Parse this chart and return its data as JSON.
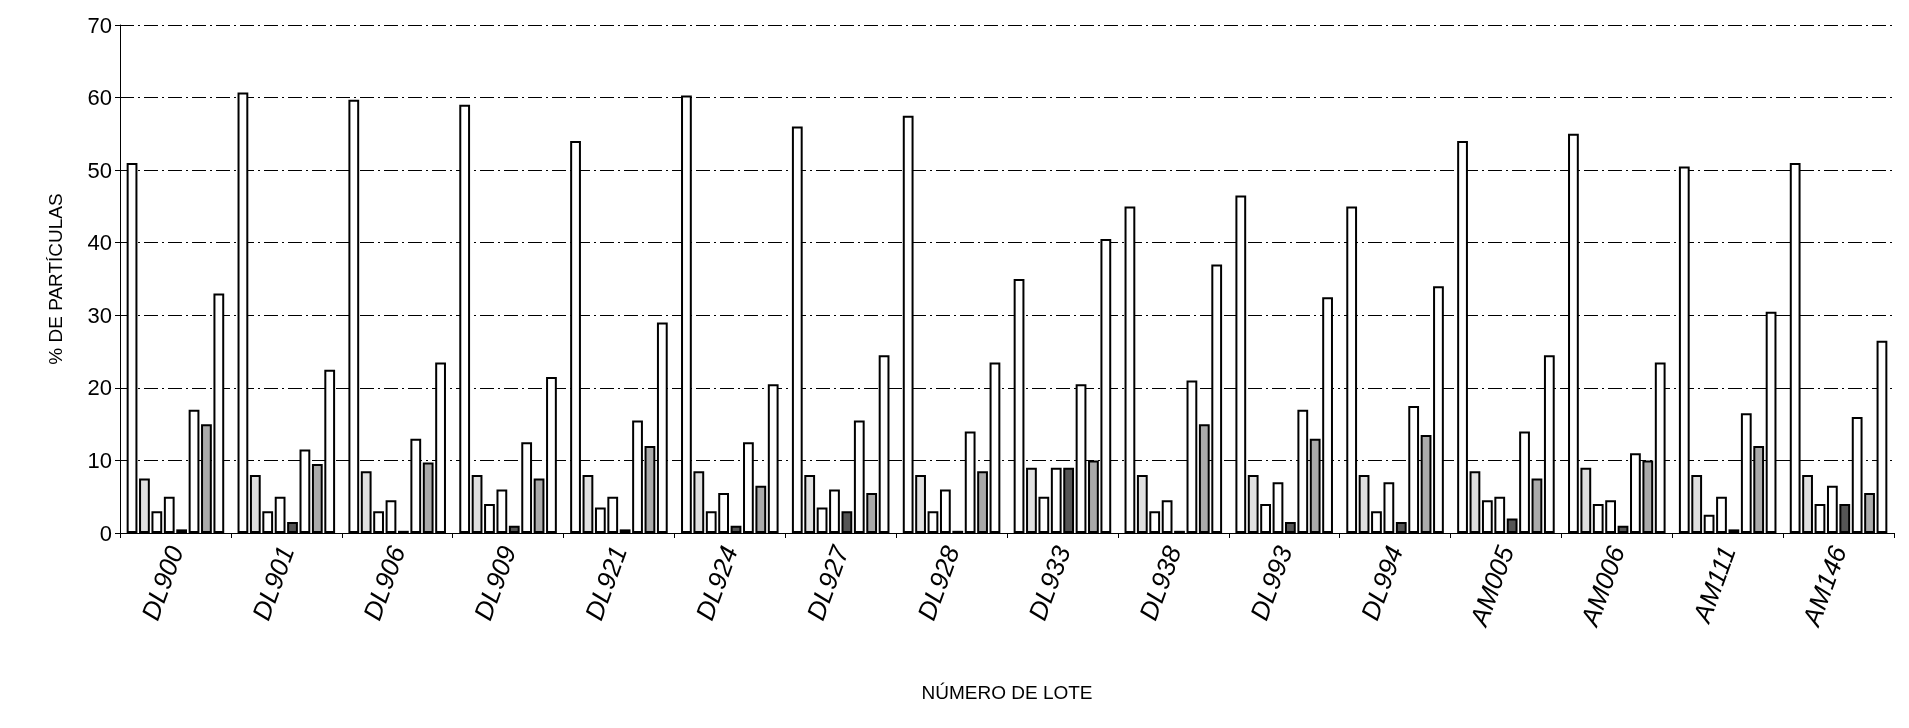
{
  "chart_data": {
    "type": "bar",
    "xlabel": "NÚMERO DE LOTE",
    "ylabel": "% DE PARTÍCULAS",
    "categories": [
      "DL900",
      "DL901",
      "DL906",
      "DL909",
      "DL921",
      "DL924",
      "DL927",
      "DL928",
      "DL933",
      "DL938",
      "DL993",
      "DL994",
      "AM005",
      "AM006",
      "AM111",
      "AM146"
    ],
    "series": [
      {
        "color": "#ffffff",
        "values": [
          51,
          60.7,
          59.7,
          59,
          54,
          60.3,
          56,
          57.5,
          35,
          45,
          46.5,
          45,
          54,
          55,
          50.5,
          51
        ]
      },
      {
        "color": "#e0e0e0",
        "values": [
          7.5,
          8,
          8.5,
          8,
          8,
          8.5,
          8,
          8,
          9,
          8,
          8,
          8,
          8.5,
          9,
          8,
          8
        ]
      },
      {
        "color": "#ffffff",
        "values": [
          3,
          3,
          3,
          4,
          3.5,
          3,
          3.5,
          3,
          5,
          3,
          4,
          3,
          4.5,
          4,
          2.5,
          4
        ]
      },
      {
        "color": "#ffffff",
        "values": [
          5,
          5,
          4.5,
          6,
          5,
          5.5,
          6,
          6,
          9,
          4.5,
          7,
          7,
          5,
          4.5,
          5,
          6.5
        ]
      },
      {
        "color": "#555555",
        "values": [
          0.5,
          1.5,
          0.3,
          1,
          0.5,
          1,
          3,
          0.3,
          9,
          0.3,
          1.5,
          1.5,
          2,
          1,
          0.5,
          4
        ]
      },
      {
        "color": "#ffffff",
        "values": [
          17,
          11.5,
          13,
          12.5,
          15.5,
          12.5,
          15.5,
          14,
          20.5,
          21,
          17,
          17.5,
          14,
          11,
          16.5,
          16
        ]
      },
      {
        "color": "#aaaaaa",
        "values": [
          15,
          9.5,
          9.7,
          7.5,
          12,
          6.5,
          5.5,
          8.5,
          10,
          15,
          13,
          13.5,
          7.5,
          10,
          12,
          5.5
        ]
      },
      {
        "color": "#ffffff",
        "values": [
          33,
          22.5,
          23.5,
          21.5,
          29,
          20.5,
          24.5,
          23.5,
          40.5,
          37,
          32.5,
          34,
          24.5,
          23.5,
          30.5,
          26.5
        ]
      }
    ],
    "ylim": [
      0,
      70
    ],
    "yticks": [
      0,
      10,
      20,
      30,
      40,
      50,
      60,
      70
    ],
    "grid": "y"
  }
}
